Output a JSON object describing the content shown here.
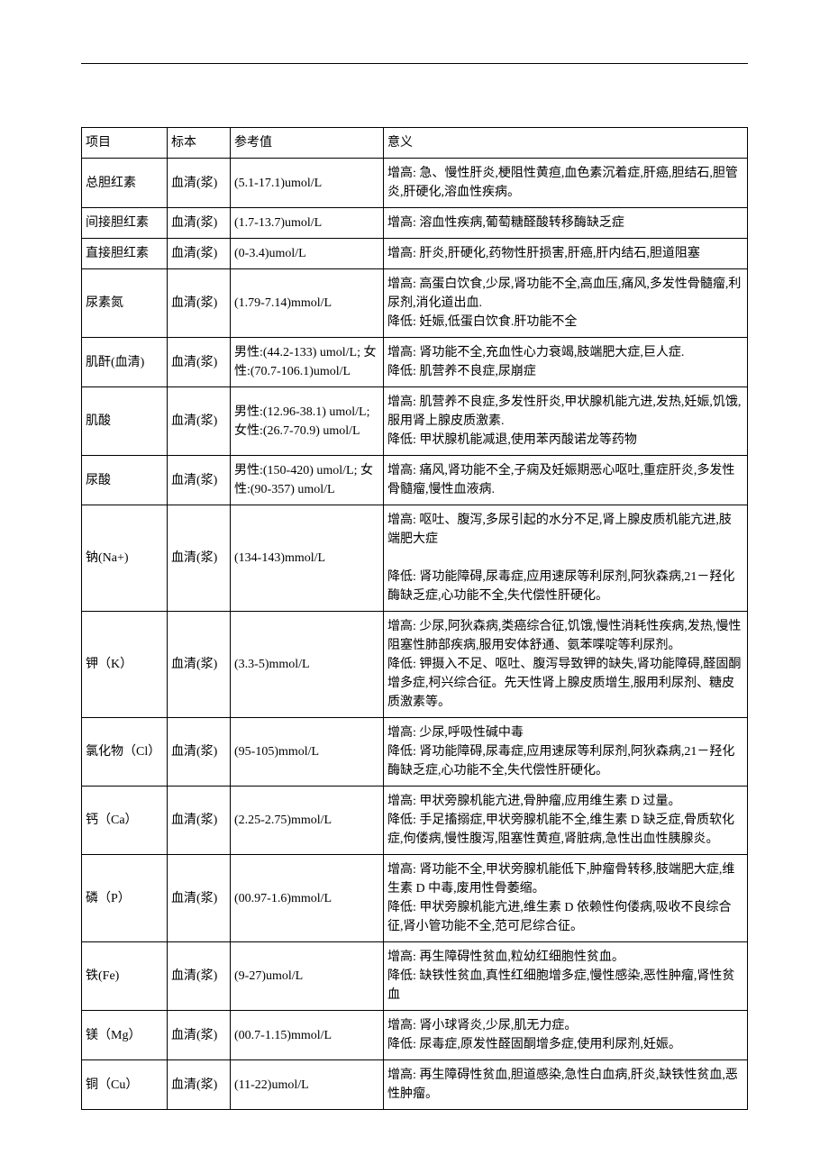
{
  "headers": {
    "c1": "项目",
    "c2": "标本",
    "c3": "参考值",
    "c4": "意义"
  },
  "rows": [
    {
      "c1": "总胆红素",
      "c2": "血清(浆)",
      "c3": "(5.1-17.1)umol/L",
      "c4": "增高: 急、慢性肝炎,梗阻性黄疸,血色素沉着症,肝癌,胆结石,胆管炎,肝硬化,溶血性疾病。"
    },
    {
      "c1": "间接胆红素",
      "c2": "血清(浆)",
      "c3": "(1.7-13.7)umol/L",
      "c4": "增高: 溶血性疾病,葡萄糖醛酸转移酶缺乏症"
    },
    {
      "c1": "直接胆红素",
      "c2": "血清(浆)",
      "c3": "(0-3.4)umol/L",
      "c4": "增高: 肝炎,肝硬化,药物性肝损害,肝癌,肝内结石,胆道阻塞"
    },
    {
      "c1": "尿素氮",
      "c2": "血清(浆)",
      "c3": "(1.79-7.14)mmol/L",
      "c4": "增高: 高蛋白饮食,少尿,肾功能不全,高血压,痛风,多发性骨髓瘤,利尿剂,消化道出血.\n降低: 妊娠,低蛋白饮食.肝功能不全"
    },
    {
      "c1": "肌酐(血清)",
      "c2": "血清(浆)",
      "c3": "男性:(44.2-133) umol/L;  女性:(70.7-106.1)umol/L",
      "c4": "增高: 肾功能不全,充血性心力衰竭,肢端肥大症,巨人症.\n降低: 肌营养不良症,尿崩症"
    },
    {
      "c1": "肌酸",
      "c2": "血清(浆)",
      "c3": "男性:(12.96-38.1) umol/L;  女性:(26.7-70.9) umol/L",
      "c4": "增高: 肌营养不良症,多发性肝炎,甲状腺机能亢进,发热,妊娠,饥饿,服用肾上腺皮质激素.\n降低: 甲状腺机能减退,使用苯丙酸诺龙等药物"
    },
    {
      "c1": "尿酸",
      "c2": "血清(浆)",
      "c3": "男性:(150-420) umol/L;  女性:(90-357) umol/L",
      "c4": "增高: 痛风,肾功能不全,子痫及妊娠期恶心呕吐,重症肝炎,多发性骨髓瘤,慢性血液病."
    },
    {
      "c1": "钠(Na+)",
      "c2": "血清(浆)",
      "c3": "(134-143)mmol/L",
      "c4": "增高: 呕吐、腹泻,多尿引起的水分不足,肾上腺皮质机能亢进,肢端肥大症\n\n降低: 肾功能障碍,尿毒症,应用速尿等利尿剂,阿狄森病,21－羟化酶缺乏症,心功能不全,失代偿性肝硬化。"
    },
    {
      "c1": "钾（K）",
      "c2": "血清(浆)",
      "c3": "(3.3-5)mmol/L",
      "c4": "增高: 少尿,阿狄森病,类癌综合征,饥饿,慢性消耗性疾病,发热,慢性阻塞性肺部疾病,服用安体舒通、氨苯喋啶等利尿剂。\n降低: 钾摄入不足、呕吐、腹泻导致钾的缺失,肾功能障碍,醛固酮增多症,柯兴综合征。先天性肾上腺皮质增生,服用利尿剂、糖皮质激素等。"
    },
    {
      "c1": "氯化物（Cl）",
      "c2": "血清(浆)",
      "c3": "(95-105)mmol/L",
      "c4": "增高: 少尿,呼吸性碱中毒\n降低: 肾功能障碍,尿毒症,应用速尿等利尿剂,阿狄森病,21－羟化酶缺乏症,心功能不全,失代偿性肝硬化。"
    },
    {
      "c1": "钙（Ca）",
      "c2": "血清(浆)",
      "c3": "(2.25-2.75)mmol/L",
      "c4": "增高: 甲状旁腺机能亢进,骨肿瘤,应用维生素 D 过量。\n降低: 手足搐搦症,甲状旁腺机能不全,维生素 D 缺乏症,骨质软化症,佝偻病,慢性腹泻,阻塞性黄疸,肾脏病,急性出血性胰腺炎。"
    },
    {
      "c1": "磷（P）",
      "c2": "血清(浆)",
      "c3": "(00.97-1.6)mmol/L",
      "c4": "增高: 肾功能不全,甲状旁腺机能低下,肿瘤骨转移,肢端肥大症,维生素 D 中毒,废用性骨萎缩。\n降低: 甲状旁腺机能亢进,维生素 D 依赖性佝偻病,吸收不良综合征,肾小管功能不全,范可尼综合征。"
    },
    {
      "c1": "铁(Fe)",
      "c2": "血清(浆)",
      "c3": "(9-27)umol/L",
      "c4": "增高: 再生障碍性贫血,粒幼红细胞性贫血。\n降低: 缺铁性贫血,真性红细胞增多症,慢性感染,恶性肿瘤,肾性贫血"
    },
    {
      "c1": "镁（Mg）",
      "c2": "血清(浆)",
      "c3": "(00.7-1.15)mmol/L",
      "c4": "增高: 肾小球肾炎,少尿,肌无力症。\n降低: 尿毒症,原发性醛固酮增多症,使用利尿剂,妊娠。"
    },
    {
      "c1": "铜（Cu）",
      "c2": "血清(浆)",
      "c3": "(11-22)umol/L",
      "c4": "增高: 再生障碍性贫血,胆道感染,急性白血病,肝炎,缺铁性贫血,恶性肿瘤。"
    }
  ]
}
